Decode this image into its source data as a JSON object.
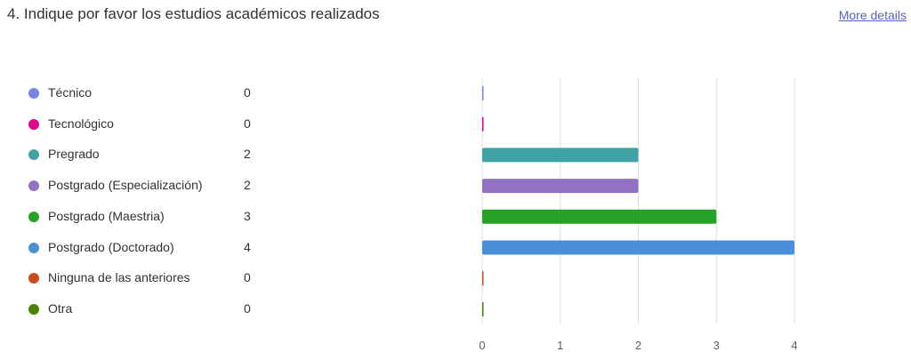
{
  "question": {
    "title": "4. Indique por favor los estudios académicos realizados",
    "more_details": "More details"
  },
  "chart_data": {
    "type": "bar",
    "orientation": "horizontal",
    "categories": [
      "Técnico",
      "Tecnológico",
      "Pregrado",
      "Postgrado (Especialización)",
      "Postgrado (Maestria)",
      "Postgrado (Doctorado)",
      "Ninguna de las anteriores",
      "Otra"
    ],
    "values": [
      0,
      0,
      2,
      2,
      3,
      4,
      0,
      0
    ],
    "colors": [
      "#7b83eb",
      "#e3008c",
      "#40a2a5",
      "#9272c5",
      "#26a326",
      "#4a90d9",
      "#c84c1e",
      "#498205"
    ],
    "xticks": [
      "0",
      "1",
      "2",
      "3",
      "4"
    ],
    "xlim": [
      0,
      4
    ],
    "grid": true,
    "legend": "left"
  }
}
